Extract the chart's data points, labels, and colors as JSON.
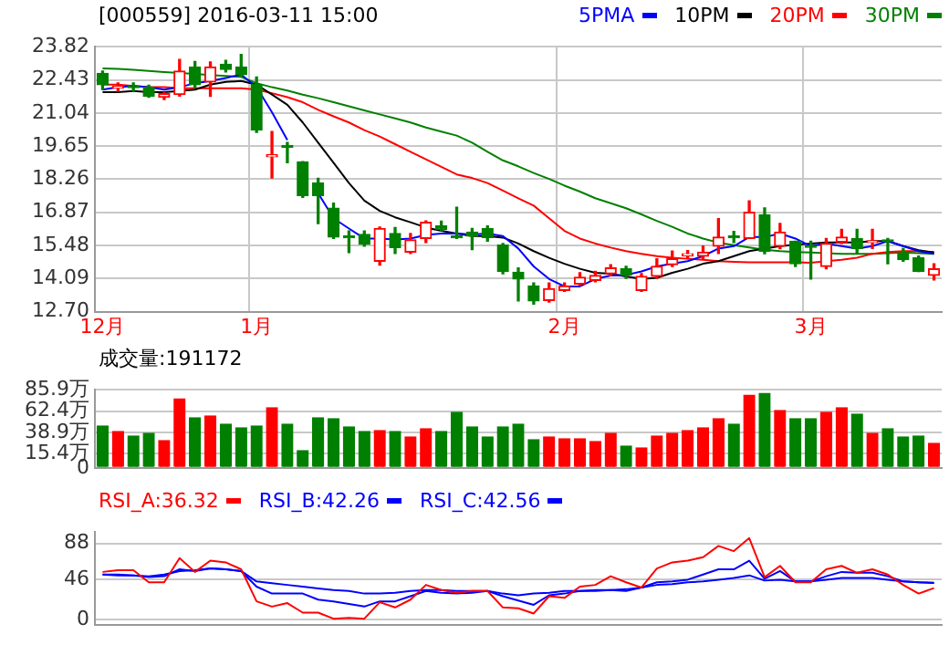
{
  "chart_data": [
    {
      "type": "candlestick",
      "title": "[000559] 2016-03-11 15:00",
      "categories": [
        "12月",
        null,
        null,
        null,
        null,
        null,
        null,
        null,
        null,
        null,
        "1月",
        null,
        null,
        null,
        null,
        null,
        null,
        null,
        null,
        null,
        null,
        null,
        null,
        null,
        null,
        null,
        null,
        null,
        null,
        null,
        "2月",
        null,
        null,
        null,
        null,
        null,
        null,
        null,
        null,
        null,
        null,
        null,
        null,
        null,
        null,
        null,
        "3月",
        null,
        null,
        null,
        null,
        null,
        null,
        null,
        null
      ],
      "ohlc": [
        [
          22.7,
          22.8,
          22.02,
          22.23
        ],
        [
          22.08,
          22.3,
          21.95,
          22.12
        ],
        [
          22.1,
          22.3,
          21.95,
          22.1
        ],
        [
          22.12,
          22.2,
          21.7,
          21.74
        ],
        [
          21.7,
          21.9,
          21.6,
          21.85
        ],
        [
          21.81,
          23.29,
          21.75,
          22.8
        ],
        [
          22.97,
          23.2,
          22.1,
          22.23
        ],
        [
          22.34,
          23.18,
          21.74,
          22.97
        ],
        [
          23.08,
          23.25,
          22.76,
          22.87
        ],
        [
          22.97,
          23.5,
          22.59,
          22.65
        ],
        [
          22.23,
          22.55,
          20.22,
          20.33
        ],
        [
          19.2,
          20.26,
          18.31,
          19.28
        ],
        [
          19.65,
          19.8,
          18.95,
          19.6
        ],
        [
          18.99,
          19.0,
          17.5,
          17.57
        ],
        [
          18.1,
          18.3,
          16.4,
          17.57
        ],
        [
          17.04,
          17.25,
          15.77,
          15.83
        ],
        [
          15.85,
          16.09,
          15.18,
          15.8
        ],
        [
          15.94,
          16.09,
          15.45,
          15.52
        ],
        [
          14.82,
          16.25,
          14.65,
          16.19
        ],
        [
          15.98,
          16.23,
          15.14,
          15.39
        ],
        [
          15.2,
          15.98,
          15.14,
          15.71
        ],
        [
          15.77,
          16.51,
          15.6,
          16.45
        ],
        [
          16.3,
          16.5,
          16.1,
          16.15
        ],
        [
          15.83,
          17.08,
          15.77,
          15.8
        ],
        [
          16.04,
          16.19,
          15.3,
          15.87
        ],
        [
          16.19,
          16.3,
          15.66,
          15.81
        ],
        [
          15.49,
          15.56,
          14.29,
          14.39
        ],
        [
          14.35,
          14.54,
          13.15,
          14.07
        ],
        [
          13.78,
          13.9,
          13.02,
          13.15
        ],
        [
          13.17,
          13.9,
          13.1,
          13.66
        ],
        [
          13.59,
          13.9,
          13.55,
          13.78
        ],
        [
          13.86,
          14.33,
          13.8,
          14.14
        ],
        [
          14.01,
          14.39,
          13.95,
          14.22
        ],
        [
          14.29,
          14.67,
          14.2,
          14.54
        ],
        [
          14.5,
          14.6,
          14.1,
          14.24
        ],
        [
          13.59,
          14.3,
          13.55,
          14.18
        ],
        [
          14.18,
          14.92,
          14.1,
          14.6
        ],
        [
          14.67,
          15.24,
          14.6,
          14.92
        ],
        [
          15.05,
          15.26,
          14.92,
          15.12
        ],
        [
          15.03,
          15.45,
          14.9,
          15.2
        ],
        [
          15.45,
          16.6,
          15.14,
          15.83
        ],
        [
          15.85,
          16.07,
          15.6,
          15.8
        ],
        [
          15.77,
          17.35,
          15.77,
          16.87
        ],
        [
          16.77,
          17.05,
          15.13,
          15.24
        ],
        [
          15.45,
          16.4,
          15.34,
          16.04
        ],
        [
          15.66,
          15.66,
          14.6,
          14.71
        ],
        [
          15.45,
          15.66,
          14.07,
          15.4
        ],
        [
          14.6,
          15.77,
          14.5,
          15.56
        ],
        [
          15.62,
          16.15,
          15.56,
          15.83
        ],
        [
          15.77,
          16.15,
          15.13,
          15.35
        ],
        [
          15.6,
          16.15,
          15.35,
          15.66
        ],
        [
          15.7,
          15.77,
          14.71,
          15.64
        ],
        [
          15.13,
          15.35,
          14.82,
          14.88
        ],
        [
          14.96,
          15.03,
          14.39,
          14.39
        ],
        [
          14.22,
          14.71,
          14.03,
          14.5
        ]
      ],
      "colors": [
        "#008000",
        "#ff0000",
        "#008000",
        "#008000",
        "#ff0000",
        "#ff0000",
        "#008000",
        "#ff0000",
        "#008000",
        "#008000",
        "#008000",
        "#ff0000",
        "#008000",
        "#008000",
        "#008000",
        "#008000",
        "#008000",
        "#008000",
        "#ff0000",
        "#008000",
        "#ff0000",
        "#ff0000",
        "#008000",
        "#008000",
        "#008000",
        "#008000",
        "#008000",
        "#008000",
        "#008000",
        "#ff0000",
        "#ff0000",
        "#ff0000",
        "#ff0000",
        "#ff0000",
        "#008000",
        "#ff0000",
        "#ff0000",
        "#ff0000",
        "#ff0000",
        "#ff0000",
        "#ff0000",
        "#008000",
        "#ff0000",
        "#008000",
        "#ff0000",
        "#008000",
        "#008000",
        "#ff0000",
        "#ff0000",
        "#008000",
        "#ff0000",
        "#008000",
        "#008000",
        "#008000",
        "#ff0000"
      ],
      "series": [
        {
          "type": "line",
          "name": "5PMA",
          "color": "#0000ff",
          "values": [
            22.02,
            22.12,
            22.17,
            22.12,
            22.02,
            22.12,
            22.29,
            22.38,
            22.51,
            22.65,
            22.12,
            21.07,
            19.9,
            null,
            17.67,
            16.62,
            16.19,
            15.77,
            15.77,
            15.73,
            15.77,
            15.92,
            15.98,
            15.98,
            15.94,
            15.98,
            15.87,
            15.35,
            14.6,
            14.07,
            13.76,
            13.76,
            14.07,
            14.22,
            14.24,
            14.39,
            14.6,
            14.71,
            14.82,
            15.03,
            15.35,
            15.45,
            15.83,
            15.83,
            15.98,
            15.77,
            15.45,
            15.56,
            15.45,
            15.35,
            15.45,
            15.66,
            15.45,
            15.24,
            15.13
          ]
        },
        {
          "type": "line",
          "name": "10PM",
          "color": "#000000",
          "values": [
            21.91,
            21.91,
            21.96,
            21.91,
            21.91,
            21.96,
            22.02,
            22.23,
            22.34,
            22.38,
            22.23,
            21.81,
            21.38,
            20.64,
            19.79,
            18.95,
            18.1,
            17.36,
            16.93,
            16.66,
            16.45,
            16.23,
            16.09,
            15.98,
            15.87,
            15.87,
            15.81,
            15.56,
            15.24,
            14.96,
            14.71,
            14.5,
            14.33,
            14.29,
            14.18,
            14.07,
            14.12,
            14.33,
            14.5,
            14.71,
            14.82,
            15.03,
            15.24,
            15.35,
            15.45,
            15.51,
            15.56,
            15.6,
            15.6,
            15.6,
            15.66,
            15.66,
            15.45,
            15.28,
            15.18
          ]
        },
        {
          "type": "line",
          "name": "20PM",
          "color": "#ff0000",
          "values": [
            22.23,
            22.23,
            22.17,
            22.12,
            22.12,
            22.08,
            22.08,
            22.08,
            22.08,
            22.08,
            22.02,
            21.87,
            21.7,
            21.49,
            21.17,
            20.9,
            20.64,
            20.32,
            20.05,
            19.73,
            19.41,
            19.09,
            18.78,
            18.46,
            18.31,
            18.1,
            17.78,
            17.46,
            17.15,
            16.62,
            16.09,
            15.77,
            15.56,
            15.39,
            15.24,
            15.13,
            15.03,
            14.96,
            14.92,
            14.88,
            14.82,
            14.79,
            14.77,
            14.77,
            14.77,
            14.77,
            14.75,
            14.82,
            14.88,
            14.96,
            15.13,
            15.2,
            15.24,
            15.24,
            15.2
          ]
        },
        {
          "type": "line",
          "name": "30PM",
          "color": "#008000",
          "values": [
            22.91,
            22.89,
            22.85,
            22.8,
            22.76,
            22.72,
            22.68,
            22.63,
            22.59,
            22.55,
            22.29,
            22.12,
            21.98,
            21.81,
            21.66,
            21.49,
            21.32,
            21.15,
            20.98,
            20.81,
            20.64,
            20.43,
            20.26,
            20.09,
            19.79,
            19.41,
            19.05,
            18.8,
            18.52,
            18.27,
            17.99,
            17.74,
            17.46,
            17.25,
            17.04,
            16.78,
            16.51,
            16.26,
            15.98,
            15.77,
            15.6,
            15.49,
            15.39,
            15.3,
            15.24,
            15.2,
            15.18,
            15.15,
            15.13,
            15.13,
            15.13,
            15.15,
            15.18,
            15.15,
            15.13
          ]
        }
      ],
      "ylim": [
        12.7,
        23.82
      ],
      "yticks": [
        {
          "value": 12.7,
          "label": "12.70"
        },
        14.09,
        15.48,
        16.87,
        18.26,
        19.65,
        21.04,
        22.43,
        23.82
      ],
      "grid": true,
      "legend": "top right"
    },
    {
      "type": "bar",
      "title": "成交量:191172",
      "categories": [
        null,
        null,
        null,
        null,
        null,
        null,
        null,
        null,
        null,
        null,
        null,
        null,
        null,
        null,
        null,
        null,
        null,
        null,
        null,
        null,
        null,
        null,
        null,
        null,
        null,
        null,
        null,
        null,
        null,
        null,
        null,
        null,
        null,
        null,
        null,
        null,
        null,
        null,
        null,
        null,
        null,
        null,
        null,
        null,
        null,
        null,
        null,
        null,
        null,
        null,
        null,
        null,
        null,
        null,
        null
      ],
      "values": [
        46,
        40,
        35,
        38,
        30,
        76,
        55,
        57,
        48,
        44,
        46,
        66,
        48,
        19,
        55,
        54,
        45,
        40,
        41,
        40,
        34,
        43,
        40,
        61,
        45,
        34,
        45,
        48,
        31,
        34,
        32,
        32,
        29,
        38,
        24,
        22,
        35,
        38,
        41,
        44,
        54,
        48,
        80,
        82,
        63,
        54,
        54,
        61,
        66,
        59,
        38,
        43,
        34,
        35,
        27
      ],
      "colors": [
        "#008000",
        "#ff0000",
        "#008000",
        "#008000",
        "#ff0000",
        "#ff0000",
        "#008000",
        "#ff0000",
        "#008000",
        "#008000",
        "#008000",
        "#ff0000",
        "#008000",
        "#008000",
        "#008000",
        "#008000",
        "#008000",
        "#008000",
        "#ff0000",
        "#008000",
        "#ff0000",
        "#ff0000",
        "#008000",
        "#008000",
        "#008000",
        "#008000",
        "#008000",
        "#008000",
        "#008000",
        "#ff0000",
        "#ff0000",
        "#ff0000",
        "#ff0000",
        "#ff0000",
        "#008000",
        "#ff0000",
        "#ff0000",
        "#ff0000",
        "#ff0000",
        "#ff0000",
        "#ff0000",
        "#008000",
        "#ff0000",
        "#008000",
        "#ff0000",
        "#008000",
        "#008000",
        "#ff0000",
        "#ff0000",
        "#008000",
        "#ff0000",
        "#008000",
        "#008000",
        "#008000",
        "#ff0000"
      ],
      "ylim": [
        0,
        85.9
      ],
      "yticks": [
        0,
        {
          "value": 15.4,
          "label": "15.4万"
        },
        {
          "value": 38.9,
          "label": "38.9万"
        },
        {
          "value": 62.4,
          "label": "62.4万"
        },
        {
          "value": 85.9,
          "label": "85.9万"
        }
      ],
      "grid": "y",
      "tick_labels": "y"
    },
    {
      "type": "line",
      "categories": [
        null,
        null,
        null,
        null,
        null,
        null,
        null,
        null,
        null,
        null,
        null,
        null,
        null,
        null,
        null,
        null,
        null,
        null,
        null,
        null,
        null,
        null,
        null,
        null,
        null,
        null,
        null,
        null,
        null,
        null,
        null,
        null,
        null,
        null,
        null,
        null,
        null,
        null,
        null,
        null,
        null,
        null,
        null,
        null,
        null,
        null,
        null,
        null,
        null,
        null,
        null,
        null,
        null,
        null,
        null
      ],
      "series": [
        {
          "name": "RSI_A:36.32",
          "color": "#ff0000",
          "values": [
            55,
            57,
            57,
            43,
            43,
            71,
            55,
            68,
            66,
            58,
            21,
            15,
            19,
            8,
            8,
            1,
            2,
            1,
            20,
            14,
            23,
            40,
            34,
            31,
            33,
            33,
            14,
            13,
            7,
            27,
            25,
            38,
            40,
            50,
            43,
            37,
            59,
            66,
            68,
            72,
            85,
            79,
            94,
            49,
            62,
            43,
            43,
            58,
            62,
            54,
            58,
            52,
            40,
            30,
            36.32
          ]
        },
        {
          "name": "RSI_B:42.26",
          "color": "#0000ff",
          "values": [
            52,
            51,
            51,
            49,
            50,
            58,
            56,
            59,
            58,
            56,
            38,
            30,
            30,
            30,
            23,
            21,
            18,
            15,
            21,
            21,
            27,
            33,
            31,
            30,
            31,
            33,
            27,
            22,
            17,
            28,
            30,
            33,
            34,
            34,
            33,
            37,
            43,
            44,
            46,
            52,
            58,
            58,
            68,
            47,
            56,
            44,
            44,
            50,
            55,
            54,
            54,
            50,
            44,
            43,
            42.26
          ]
        },
        {
          "name": "RSI_C:42.56",
          "color": "#0000ff",
          "values": [
            52,
            52,
            51,
            50,
            52,
            56,
            57,
            59,
            58,
            56,
            44,
            42,
            40,
            38,
            36,
            34,
            33,
            30,
            30,
            31,
            33,
            34,
            34,
            33,
            33,
            33,
            30,
            28,
            30,
            31,
            33,
            33,
            33,
            34,
            35,
            37,
            40,
            41,
            43,
            44,
            46,
            48,
            51,
            45,
            46,
            44,
            44,
            46,
            48,
            48,
            48,
            46,
            44,
            43,
            42.56
          ]
        }
      ],
      "ylim": [
        -6,
        101
      ],
      "yticks": [
        0,
        46,
        88
      ],
      "grid": "y",
      "legend": "top left",
      "tick_labels": "y"
    }
  ]
}
